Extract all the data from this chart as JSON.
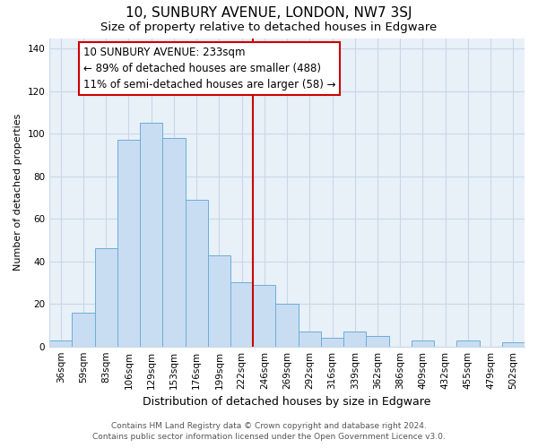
{
  "title": "10, SUNBURY AVENUE, LONDON, NW7 3SJ",
  "subtitle": "Size of property relative to detached houses in Edgware",
  "xlabel": "Distribution of detached houses by size in Edgware",
  "ylabel": "Number of detached properties",
  "bar_labels": [
    "36sqm",
    "59sqm",
    "83sqm",
    "106sqm",
    "129sqm",
    "153sqm",
    "176sqm",
    "199sqm",
    "222sqm",
    "246sqm",
    "269sqm",
    "292sqm",
    "316sqm",
    "339sqm",
    "362sqm",
    "386sqm",
    "409sqm",
    "432sqm",
    "455sqm",
    "479sqm",
    "502sqm"
  ],
  "bar_values": [
    3,
    16,
    46,
    97,
    105,
    98,
    69,
    43,
    30,
    29,
    20,
    7,
    4,
    7,
    5,
    0,
    3,
    0,
    3,
    0,
    2
  ],
  "bar_color": "#c9ddf2",
  "bar_edge_color": "#6baed6",
  "highlight_bar_index": 8,
  "vline_color": "#cc0000",
  "annotation_title": "10 SUNBURY AVENUE: 233sqm",
  "annotation_line1": "← 89% of detached houses are smaller (488)",
  "annotation_line2": "11% of semi-detached houses are larger (58) →",
  "annotation_box_color": "#ffffff",
  "annotation_box_edge_color": "#cc0000",
  "ylim": [
    0,
    145
  ],
  "yticks": [
    0,
    20,
    40,
    60,
    80,
    100,
    120,
    140
  ],
  "footer_line1": "Contains HM Land Registry data © Crown copyright and database right 2024.",
  "footer_line2": "Contains public sector information licensed under the Open Government Licence v3.0.",
  "background_color": "#ffffff",
  "plot_bg_color": "#e8f0f8",
  "grid_color": "#c8d8e8",
  "title_fontsize": 11,
  "subtitle_fontsize": 9.5,
  "xlabel_fontsize": 9,
  "ylabel_fontsize": 8,
  "tick_fontsize": 7.5,
  "annotation_fontsize": 8.5,
  "footer_fontsize": 6.5
}
